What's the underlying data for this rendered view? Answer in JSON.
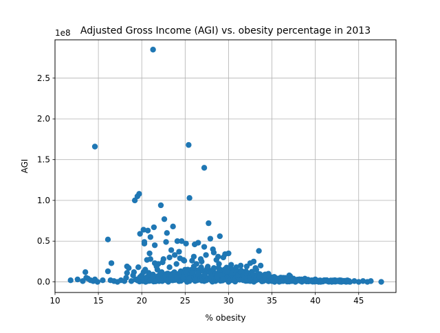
{
  "chart_data": {
    "type": "scatter",
    "title": "Adjusted Gross Income (AGI) vs. obesity percentage in 2013",
    "xlabel": "% obesity",
    "ylabel": "AGI",
    "y_offset_label": "1e8",
    "xlim": [
      10,
      49.3
    ],
    "ylim": [
      -0.13,
      2.97
    ],
    "x_ticks": [
      10,
      15,
      20,
      25,
      30,
      35,
      40,
      45
    ],
    "x_tick_labels": [
      "10",
      "15",
      "20",
      "25",
      "30",
      "35",
      "40",
      "45"
    ],
    "y_ticks": [
      0.0,
      0.5,
      1.0,
      1.5,
      2.0,
      2.5
    ],
    "y_tick_labels": [
      "0.0",
      "0.5",
      "1.0",
      "1.5",
      "2.0",
      "2.5"
    ],
    "grid": true,
    "marker_color": "#1f77b4",
    "points_x": [
      11.8,
      12.6,
      13.2,
      13.5,
      13.8,
      14.1,
      14.4,
      14.6,
      14.9,
      15.5,
      16.1,
      16.4,
      16.8,
      17.2,
      17.6,
      18.0,
      18.2,
      18.3,
      18.5,
      18.8,
      19.1,
      19.3,
      19.5,
      19.6,
      19.8,
      19.9,
      20.0,
      20.1,
      20.2,
      20.3,
      20.4,
      20.5,
      20.7,
      20.8,
      21.0,
      21.1,
      21.2,
      21.3,
      21.4,
      21.5,
      21.6,
      21.7,
      21.8,
      22.0,
      22.2,
      22.3,
      22.5,
      22.6,
      22.8,
      22.9,
      23.0,
      23.2,
      23.3,
      23.5,
      23.7,
      23.9,
      24.0,
      24.2,
      24.3,
      24.5,
      24.6,
      24.8,
      25.0,
      25.1,
      25.3,
      25.4,
      25.5,
      25.7,
      25.9,
      26.0,
      26.2,
      26.4,
      26.5,
      26.7,
      26.9,
      27.0,
      27.2,
      27.3,
      27.5,
      27.6,
      27.8,
      28.0,
      28.1,
      28.3,
      28.5,
      28.7,
      28.9,
      29.0,
      29.2,
      29.4,
      29.6,
      29.8,
      30.0,
      30.2,
      30.4,
      30.6,
      30.8,
      31.0,
      31.2,
      31.5,
      31.7,
      32.0,
      32.2,
      32.5,
      32.7,
      33.0,
      33.2,
      33.5,
      33.8,
      34.0,
      34.3,
      34.5,
      34.8,
      35.0,
      35.3,
      35.5,
      35.8,
      36.0,
      36.3,
      36.6,
      37.0,
      37.3,
      37.6,
      38.0,
      38.4,
      38.8,
      39.2,
      39.6,
      40.0,
      40.5,
      41.0,
      41.4,
      41.9,
      42.3,
      42.8,
      43.3,
      44.0,
      44.5,
      45.0,
      45.5,
      46.0,
      46.4,
      47.6,
      14.6,
      25.4,
      21.3,
      27.2,
      19.7,
      19.5,
      19.2,
      25.5,
      22.2,
      20.2,
      21.4,
      20.7,
      21.0,
      22.6,
      23.6,
      27.7,
      16.1,
      19.8,
      20.3,
      21.5,
      22.9,
      24.1,
      24.6,
      25.1,
      26.1,
      26.5,
      27.2,
      27.9,
      28.2,
      29.0,
      29.6,
      30.0,
      33.5,
      22.8,
      23.2,
      24.3,
      26.0,
      28.6,
      31.4,
      32.5,
      13.6,
      16.5,
      18.3,
      19.0,
      23.8,
      28.3,
      30.7,
      32.9,
      35.6,
      37.1,
      20.6,
      21.9,
      24.9,
      26.8,
      29.4,
      31.9,
      33.7,
      34.6,
      21.7,
      23.4,
      25.8,
      27.4,
      30.3,
      32.1,
      33.1,
      36.2,
      20.9,
      22.4,
      24.4,
      26.3,
      28.8,
      30.9,
      34.2,
      38.6
    ],
    "points_y": [
      0.02,
      0.03,
      0.01,
      0.12,
      0.04,
      0.02,
      0.01,
      0.03,
      0.0,
      0.02,
      0.13,
      0.02,
      0.01,
      0.0,
      0.02,
      0.01,
      0.05,
      0.19,
      0.17,
      0.01,
      0.12,
      0.03,
      0.02,
      0.18,
      0.06,
      0.03,
      0.08,
      0.01,
      0.12,
      0.47,
      0.15,
      0.05,
      0.02,
      0.11,
      0.28,
      0.04,
      0.02,
      0.09,
      0.01,
      0.23,
      0.06,
      0.03,
      0.15,
      0.01,
      0.07,
      0.12,
      0.28,
      0.04,
      0.02,
      0.1,
      0.05,
      0.18,
      0.06,
      0.02,
      0.11,
      0.03,
      0.22,
      0.05,
      0.01,
      0.13,
      0.04,
      0.27,
      0.08,
      0.02,
      0.15,
      0.06,
      0.01,
      0.1,
      0.03,
      0.19,
      0.07,
      0.02,
      0.12,
      0.04,
      0.25,
      0.06,
      0.01,
      0.11,
      0.03,
      0.18,
      0.05,
      0.02,
      0.14,
      0.04,
      0.01,
      0.09,
      0.22,
      0.05,
      0.02,
      0.12,
      0.03,
      0.08,
      0.04,
      0.17,
      0.02,
      0.06,
      0.01,
      0.11,
      0.03,
      0.07,
      0.02,
      0.13,
      0.04,
      0.01,
      0.08,
      0.02,
      0.15,
      0.03,
      0.05,
      0.01,
      0.09,
      0.02,
      0.04,
      0.01,
      0.06,
      0.02,
      0.03,
      0.01,
      0.05,
      0.02,
      0.08,
      0.01,
      0.03,
      0.02,
      0.01,
      0.04,
      0.02,
      0.01,
      0.03,
      0.01,
      0.02,
      0.01,
      0.0,
      0.01,
      0.02,
      0.01,
      0.0,
      0.01,
      0.0,
      0.01,
      0.0,
      0.01,
      0.0,
      1.66,
      1.68,
      2.85,
      1.4,
      1.08,
      1.05,
      1.0,
      1.03,
      0.94,
      0.64,
      0.67,
      0.63,
      0.55,
      0.77,
      0.68,
      0.72,
      0.52,
      0.59,
      0.49,
      0.45,
      0.6,
      0.5,
      0.5,
      0.47,
      0.46,
      0.48,
      0.43,
      0.53,
      0.4,
      0.56,
      0.34,
      0.35,
      0.38,
      0.49,
      0.3,
      0.37,
      0.31,
      0.27,
      0.2,
      0.23,
      0.05,
      0.23,
      0.11,
      0.08,
      0.33,
      0.36,
      0.14,
      0.25,
      0.03,
      0.07,
      0.27,
      0.22,
      0.26,
      0.28,
      0.3,
      0.12,
      0.2,
      0.1,
      0.19,
      0.39,
      0.26,
      0.33,
      0.21,
      0.19,
      0.17,
      0.04,
      0.35,
      0.24,
      0.29,
      0.22,
      0.31,
      0.18,
      0.09,
      0.02
    ]
  }
}
